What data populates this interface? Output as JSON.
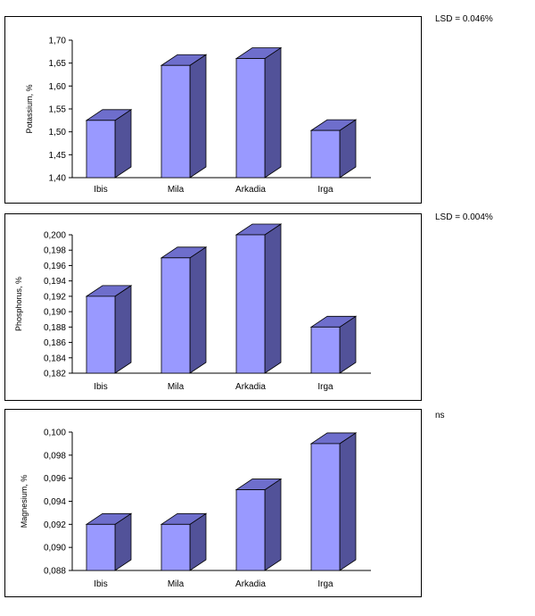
{
  "colors": {
    "bar_front": "#9999ff",
    "bar_side": "#525299",
    "bar_top": "#6e6ecc",
    "axis": "#000000"
  },
  "chart_data": [
    {
      "type": "bar",
      "categories": [
        "Ibis",
        "Mila",
        "Arkadia",
        "Irga"
      ],
      "values": [
        1.525,
        1.645,
        1.66,
        1.503
      ],
      "ylabel": "Potassium, %",
      "ylim": [
        1.4,
        1.7
      ],
      "yticks": [
        "1,40",
        "1,45",
        "1,50",
        "1,55",
        "1,60",
        "1,65",
        "1,70"
      ],
      "note": "LSD  = 0.046%",
      "grid": false
    },
    {
      "type": "bar",
      "categories": [
        "Ibis",
        "Mila",
        "Arkadia",
        "Irga"
      ],
      "values": [
        0.192,
        0.197,
        0.2,
        0.188
      ],
      "ylabel": "Phosphorus, %",
      "ylim": [
        0.182,
        0.2
      ],
      "yticks": [
        "0,182",
        "0,184",
        "0,186",
        "0,188",
        "0,190",
        "0,192",
        "0,194",
        "0,196",
        "0,198",
        "0,200"
      ],
      "note": "LSD  = 0.004%",
      "grid": false
    },
    {
      "type": "bar",
      "categories": [
        "Ibis",
        "Mila",
        "Arkadia",
        "Irga"
      ],
      "values": [
        0.092,
        0.092,
        0.095,
        0.099
      ],
      "ylabel": "Magnesium, %",
      "ylim": [
        0.088,
        0.1
      ],
      "yticks": [
        "0,088",
        "0,090",
        "0,092",
        "0,094",
        "0,096",
        "0,098",
        "0,100"
      ],
      "note": "ns",
      "grid": false
    }
  ]
}
